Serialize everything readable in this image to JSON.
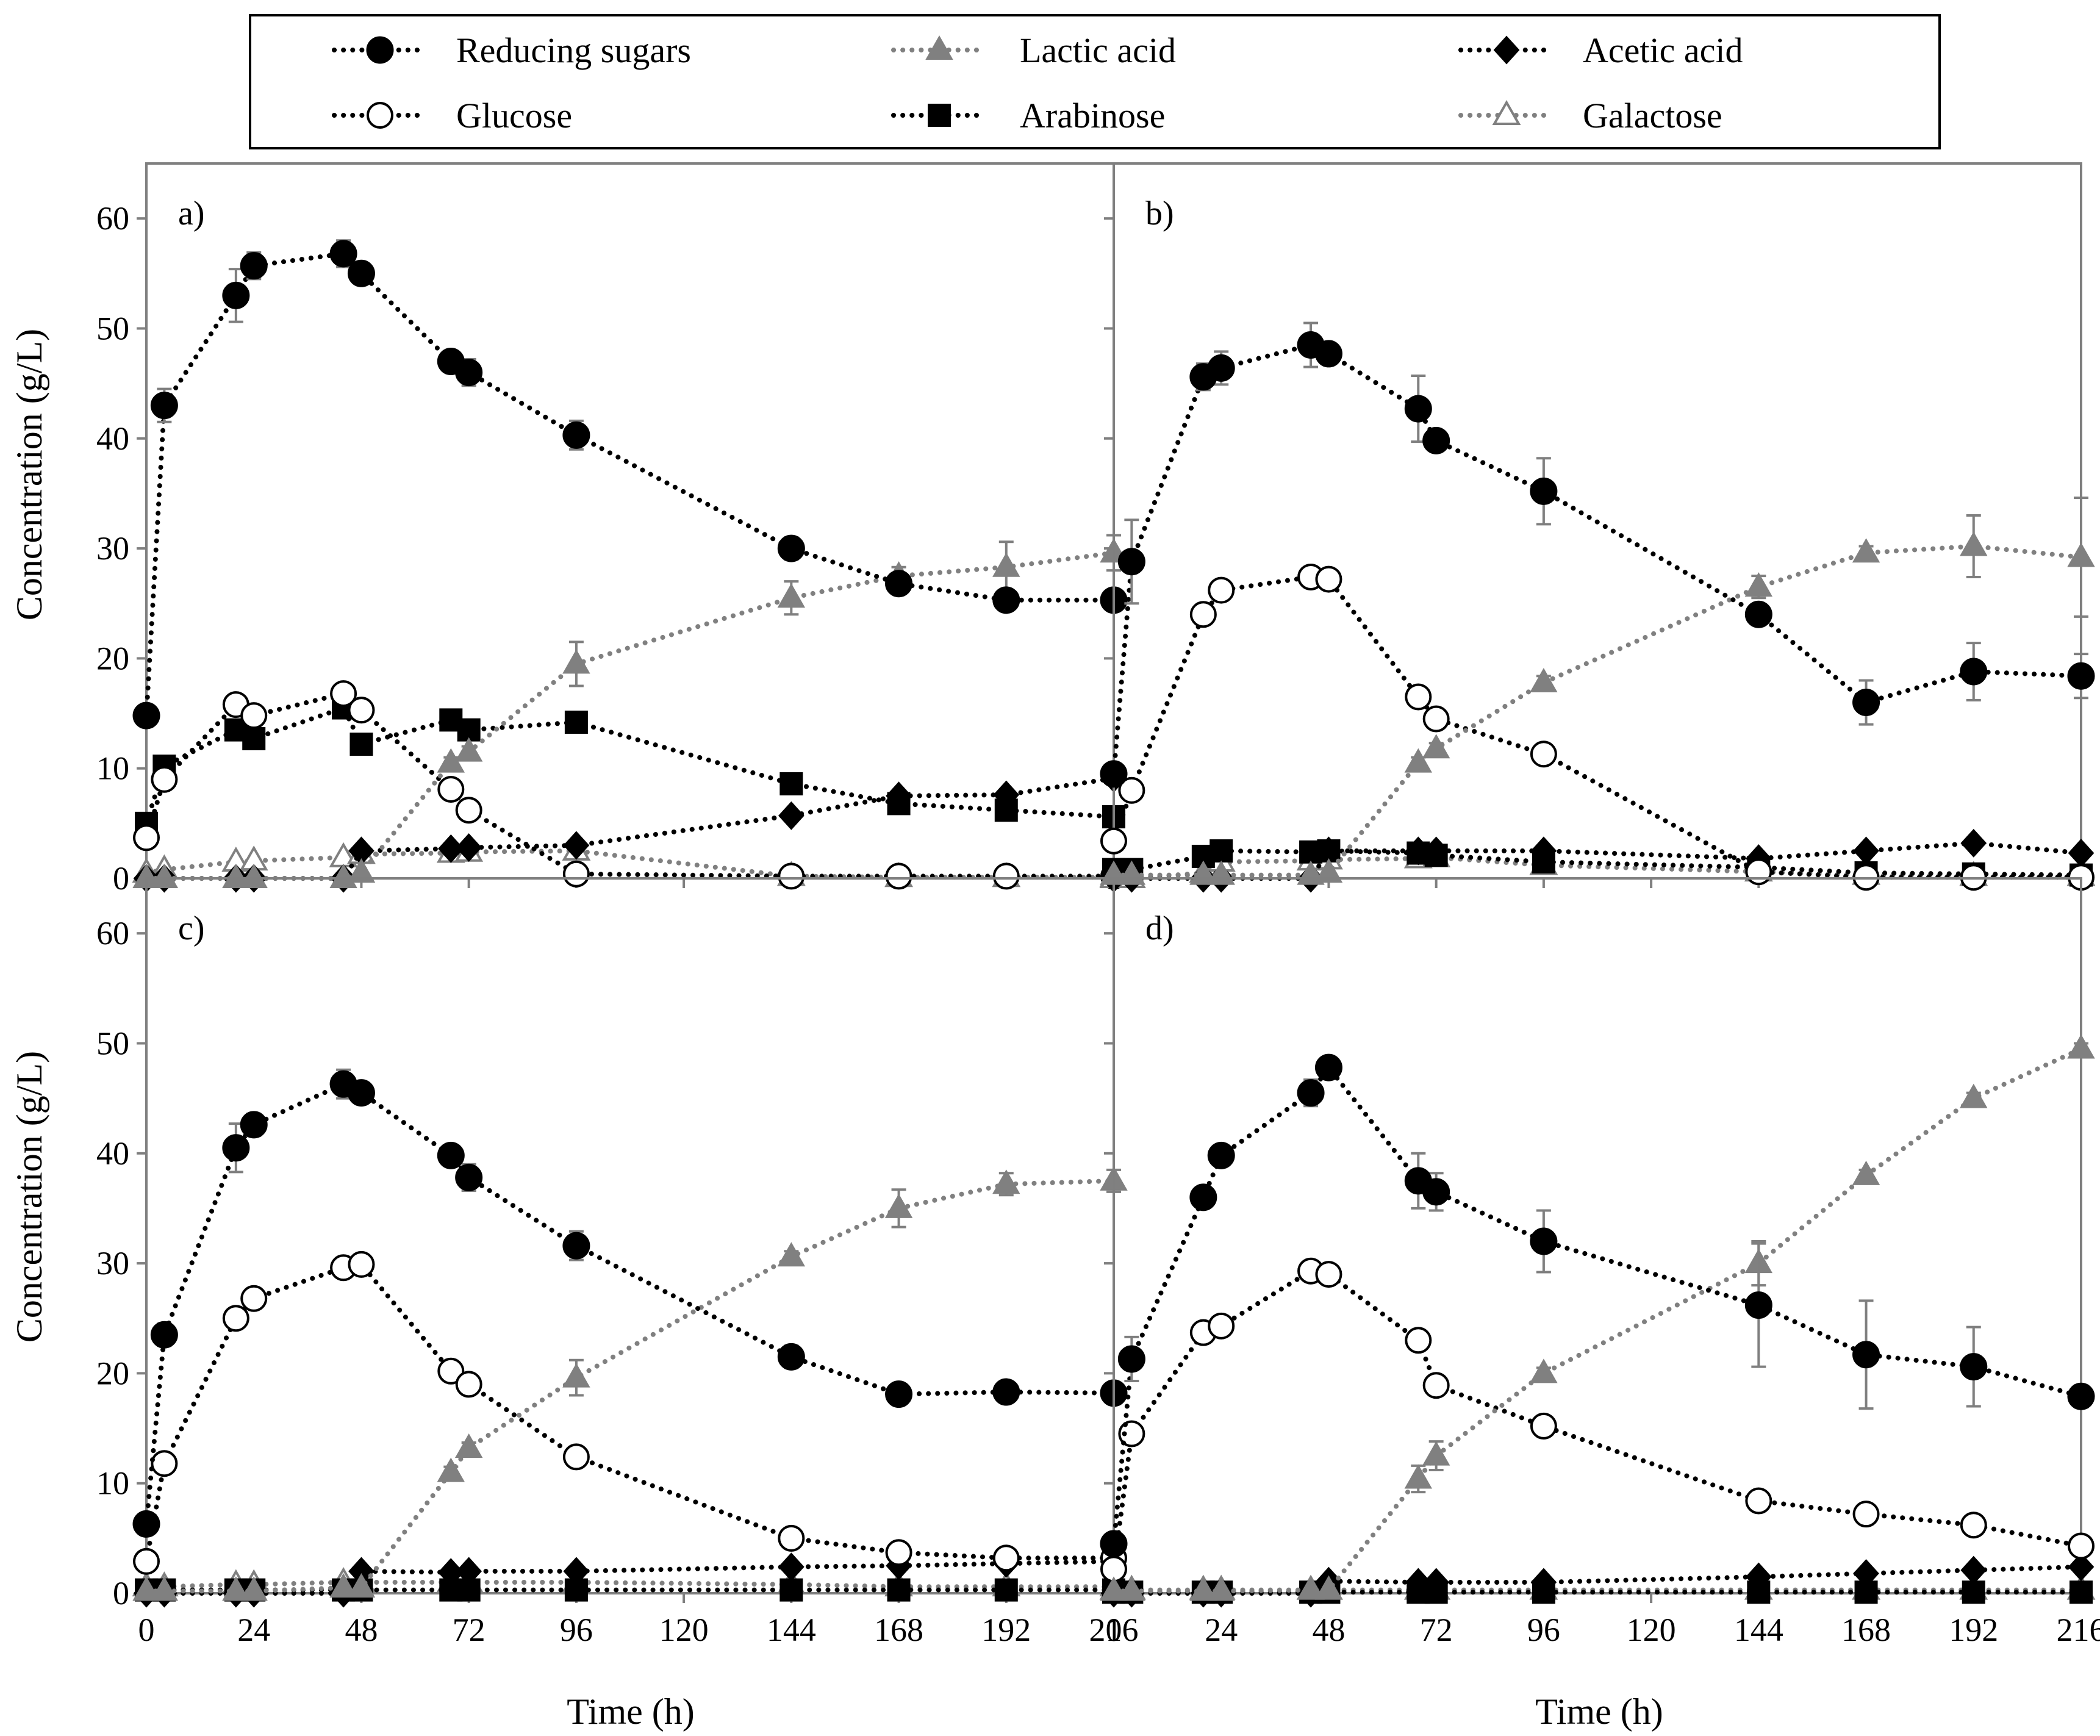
{
  "chart_data": {
    "type": "line",
    "x": [
      0,
      4,
      20,
      24,
      44,
      48,
      68,
      72,
      96,
      144,
      168,
      192,
      216
    ],
    "xlabel": "Time (h)",
    "ylabel": "Concentration (g/L)",
    "xlim": [
      0,
      216
    ],
    "ylim": [
      0,
      65
    ],
    "xticks": [
      "0",
      "24",
      "48",
      "72",
      "96",
      "120",
      "144",
      "168",
      "192",
      "216"
    ],
    "yticks": [
      "0",
      "10",
      "20",
      "30",
      "40",
      "50",
      "60"
    ],
    "legend": [
      {
        "name": "Reducing sugars",
        "color": "#000000",
        "marker": "circle-filled"
      },
      {
        "name": "Lactic acid",
        "color": "#808080",
        "marker": "triangle-filled"
      },
      {
        "name": "Acetic acid",
        "color": "#000000",
        "marker": "diamond-filled"
      },
      {
        "name": "Glucose",
        "color": "#000000",
        "marker": "circle-open"
      },
      {
        "name": "Arabinose",
        "color": "#000000",
        "marker": "square-filled"
      },
      {
        "name": "Galactose",
        "color": "#808080",
        "marker": "triangle-open"
      }
    ],
    "panels": [
      {
        "label": "a)",
        "series": [
          {
            "name": "Reducing sugars",
            "values": [
              14.8,
              43,
              53,
              55.7,
              56.8,
              55,
              47,
              46,
              40.3,
              30,
              26.8,
              25.3,
              25.3
            ],
            "errors": [
              0.8,
              1.5,
              2.4,
              1.2,
              1.2,
              0.5,
              0.8,
              1.2,
              1.3,
              1,
              0.5,
              0.5,
              0.5
            ]
          },
          {
            "name": "Lactic acid",
            "values": [
              0,
              0,
              0,
              0,
              0,
              0.5,
              10.5,
              11.5,
              19.5,
              25.5,
              27.5,
              28.3,
              29.6
            ],
            "errors": [
              0,
              0,
              0,
              0,
              0,
              0,
              0.5,
              0.5,
              2,
              1.5,
              0.8,
              2.3,
              1.6
            ]
          },
          {
            "name": "Acetic acid",
            "values": [
              0,
              0,
              0,
              0,
              0,
              2.5,
              2.7,
              2.8,
              3,
              5.7,
              7.5,
              7.6,
              9.1
            ],
            "errors": [
              0,
              0,
              0,
              0,
              0,
              0,
              0,
              0,
              0,
              0,
              0,
              0,
              0
            ]
          },
          {
            "name": "Glucose",
            "values": [
              3.7,
              9,
              15.8,
              14.8,
              16.8,
              15.3,
              8.1,
              6.2,
              0.4,
              0.2,
              0.2,
              0.2,
              0.2
            ],
            "errors": [
              0,
              0,
              0,
              0,
              0,
              0,
              0,
              0,
              0,
              0,
              0,
              0,
              0
            ]
          },
          {
            "name": "Arabinose",
            "values": [
              5,
              10.2,
              13.5,
              12.7,
              15.5,
              12.2,
              14.4,
              13.5,
              14.2,
              8.6,
              6.8,
              6.2,
              5.6
            ],
            "errors": [
              0,
              0,
              0,
              0,
              0,
              0,
              0,
              0,
              0,
              0,
              0,
              0,
              0
            ]
          },
          {
            "name": "Galactose",
            "values": [
              0.5,
              0.8,
              1.5,
              1.6,
              1.9,
              2.2,
              2.3,
              2.4,
              2.5,
              0.2,
              0.1,
              0.1,
              0.1
            ],
            "errors": [
              0,
              0,
              0,
              0,
              0,
              0,
              0,
              0,
              0,
              0,
              0,
              0,
              0
            ]
          }
        ]
      },
      {
        "label": "b)",
        "series": [
          {
            "name": "Reducing sugars",
            "values": [
              9.5,
              28.8,
              45.6,
              46.4,
              48.5,
              47.7,
              42.7,
              39.8,
              35.2,
              24,
              16,
              18.8,
              18.4
            ],
            "errors": [
              0.5,
              3.8,
              1.2,
              1.5,
              2,
              0.5,
              3,
              0.6,
              3,
              0.5,
              2,
              2.6,
              2
            ]
          },
          {
            "name": "Lactic acid",
            "values": [
              0.3,
              0.3,
              0.3,
              0.3,
              0.3,
              0.5,
              10.5,
              11.8,
              17.8,
              26.5,
              29.6,
              30.2,
              29.2
            ],
            "errors": [
              0,
              0,
              0,
              0,
              0,
              0,
              0.5,
              0.5,
              0.6,
              1,
              0.6,
              2.8,
              5.4
            ]
          },
          {
            "name": "Acetic acid",
            "values": [
              0,
              0,
              0,
              0,
              0,
              2.5,
              2.5,
              2.5,
              2.5,
              1.8,
              2.5,
              3.2,
              2.3
            ],
            "errors": [
              0,
              0,
              0,
              0,
              0,
              0,
              0,
              0,
              0,
              0,
              0,
              0,
              0
            ]
          },
          {
            "name": "Glucose",
            "values": [
              3.4,
              8,
              24,
              26.2,
              27.4,
              27.2,
              16.5,
              14.5,
              11.3,
              0.6,
              0.1,
              0.1,
              0.1
            ],
            "errors": [
              0,
              0,
              0,
              0,
              0,
              0,
              0,
              0,
              0,
              0,
              0,
              0,
              0
            ]
          },
          {
            "name": "Arabinose",
            "values": [
              0.8,
              0.8,
              2,
              2.5,
              2.4,
              2.5,
              2.3,
              2.1,
              1.5,
              1,
              0.5,
              0.4,
              0.3
            ],
            "errors": [
              0,
              0,
              0,
              0,
              0,
              0,
              0,
              0,
              0,
              0,
              0,
              0,
              0
            ]
          },
          {
            "name": "Galactose",
            "values": [
              0,
              0,
              0.5,
              1.5,
              1.6,
              1.7,
              1.8,
              1.9,
              1.2,
              0.6,
              0.3,
              0.2,
              0.2
            ],
            "errors": [
              0,
              0,
              0,
              0,
              0,
              0,
              0,
              0,
              0,
              0,
              0,
              0,
              0
            ]
          }
        ]
      },
      {
        "label": "c)",
        "series": [
          {
            "name": "Reducing sugars",
            "values": [
              6.3,
              23.5,
              40.5,
              42.6,
              46.3,
              45.5,
              39.8,
              37.8,
              31.6,
              21.5,
              18.1,
              18.3,
              18.2
            ],
            "errors": [
              0.5,
              1,
              2.2,
              1,
              1.3,
              0.4,
              0.7,
              1.2,
              1.3,
              1,
              0.5,
              0.5,
              0.5
            ]
          },
          {
            "name": "Lactic acid",
            "values": [
              0.2,
              0.2,
              0.2,
              0.2,
              0.5,
              0.5,
              11,
              13.2,
              19.6,
              30.6,
              35,
              37.2,
              37.5
            ],
            "errors": [
              0,
              0,
              0,
              0,
              0,
              0,
              0.5,
              0.5,
              1.6,
              0.5,
              1.7,
              1,
              1
            ]
          },
          {
            "name": "Acetic acid",
            "values": [
              0,
              0,
              0,
              0,
              0,
              2,
              1.9,
              2,
              2,
              2.4,
              2.5,
              2.7,
              2.9
            ],
            "errors": [
              0,
              0,
              0,
              0,
              0,
              0,
              0,
              0,
              0,
              0,
              0,
              0,
              0
            ]
          },
          {
            "name": "Glucose",
            "values": [
              2.9,
              11.8,
              25,
              26.8,
              29.6,
              29.9,
              20.2,
              19,
              12.4,
              5,
              3.7,
              3.2,
              3.2
            ],
            "errors": [
              0,
              0,
              0,
              0,
              0,
              0,
              0,
              0,
              0,
              0,
              0,
              0,
              0
            ]
          },
          {
            "name": "Arabinose",
            "values": [
              0.3,
              0.3,
              0.3,
              0.3,
              0.3,
              0.3,
              0.3,
              0.3,
              0.3,
              0.3,
              0.3,
              0.3,
              0.3
            ],
            "errors": [
              0,
              0,
              0,
              0,
              0,
              0,
              0,
              0,
              0,
              0,
              0,
              0,
              0
            ]
          },
          {
            "name": "Galactose",
            "values": [
              0.6,
              0.6,
              0.8,
              0.8,
              1,
              1,
              1,
              1,
              1,
              0.8,
              0.6,
              0.6,
              0.6
            ],
            "errors": [
              0,
              0,
              0,
              0,
              0,
              0,
              0,
              0,
              0,
              0,
              0,
              0,
              0
            ]
          }
        ]
      },
      {
        "label": "d)",
        "series": [
          {
            "name": "Reducing sugars",
            "values": [
              4.5,
              21.3,
              36,
              39.8,
              45.5,
              47.8,
              37.5,
              36.5,
              32,
              26.2,
              21.7,
              20.6,
              17.9
            ],
            "errors": [
              0.5,
              2,
              0.5,
              0.5,
              1.2,
              0.5,
              2.5,
              1.7,
              2.8,
              5.6,
              4.9,
              3.6,
              1
            ]
          },
          {
            "name": "Lactic acid",
            "values": [
              0.2,
              0.2,
              0.2,
              0.2,
              0.3,
              0.3,
              10.4,
              12.5,
              20,
              30,
              38,
              45,
              49.5
            ],
            "errors": [
              0,
              0,
              0,
              0,
              0,
              0,
              1.2,
              1.3,
              0.5,
              2,
              0.5,
              0.5,
              0.5
            ]
          },
          {
            "name": "Acetic acid",
            "values": [
              0,
              0,
              0,
              0,
              0,
              1.1,
              1,
              1,
              1,
              1.5,
              1.8,
              2.1,
              2.4
            ],
            "errors": [
              0,
              0,
              0,
              0,
              0,
              0,
              0,
              0,
              0,
              0,
              0,
              0,
              0
            ]
          },
          {
            "name": "Glucose",
            "values": [
              2.2,
              14.5,
              23.7,
              24.3,
              29.3,
              29,
              23,
              18.9,
              15.2,
              8.4,
              7.2,
              6.2,
              4.3
            ],
            "errors": [
              0,
              0,
              0,
              0,
              0,
              0,
              0,
              0,
              0,
              0,
              0,
              0,
              0
            ]
          },
          {
            "name": "Arabinose",
            "values": [
              0.1,
              0.1,
              0.1,
              0.1,
              0.1,
              0.1,
              0.1,
              0.1,
              0.1,
              0.1,
              0.1,
              0.1,
              0.1
            ],
            "errors": [
              0,
              0,
              0,
              0,
              0,
              0,
              0,
              0,
              0,
              0,
              0,
              0,
              0
            ]
          },
          {
            "name": "Galactose",
            "values": [
              0.3,
              0.3,
              0.3,
              0.3,
              0.3,
              0.3,
              0.3,
              0.3,
              0.3,
              0.3,
              0.3,
              0.3,
              0.3
            ],
            "errors": [
              0,
              0,
              0,
              0,
              0,
              0,
              0,
              0,
              0,
              0,
              0,
              0,
              0
            ]
          }
        ]
      }
    ]
  }
}
